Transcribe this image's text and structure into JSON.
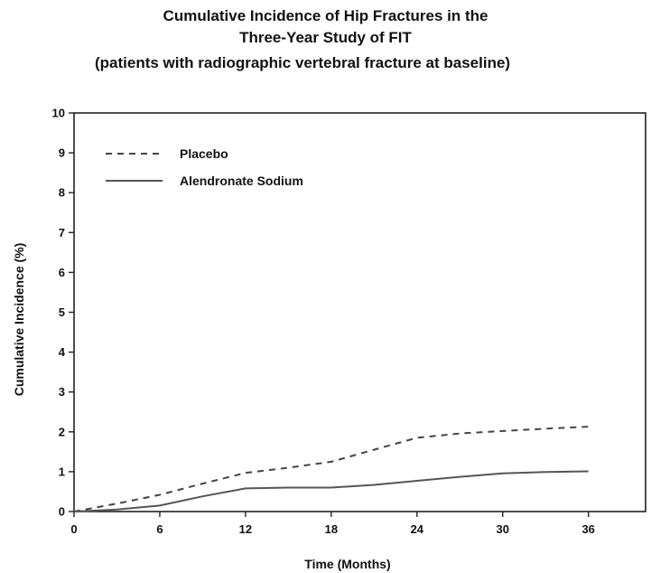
{
  "chart_data": {
    "type": "line",
    "title_lines": [
      "Cumulative Incidence of Hip Fractures in the",
      "Three-Year Study of FIT",
      "(patients with radiographic vertebral fracture at baseline)"
    ],
    "xlabel": "Time (Months)",
    "ylabel": "Cumulative Incidence (%)",
    "xlim": [
      0,
      40
    ],
    "ylim": [
      0,
      10
    ],
    "xticks": [
      0,
      6,
      12,
      18,
      24,
      30,
      36
    ],
    "yticks": [
      0,
      1,
      2,
      3,
      4,
      5,
      6,
      7,
      8,
      9,
      10
    ],
    "legend_position": "top-left",
    "grid": false,
    "series": [
      {
        "name": "Placebo",
        "style": "dashed",
        "color": "#444444",
        "points": [
          [
            0,
            0.0
          ],
          [
            3,
            0.2
          ],
          [
            6,
            0.42
          ],
          [
            9,
            0.7
          ],
          [
            12,
            0.97
          ],
          [
            15,
            1.1
          ],
          [
            18,
            1.25
          ],
          [
            21,
            1.55
          ],
          [
            24,
            1.85
          ],
          [
            27,
            1.96
          ],
          [
            30,
            2.02
          ],
          [
            33,
            2.08
          ],
          [
            36,
            2.13
          ]
        ]
      },
      {
        "name": "Alendronate Sodium",
        "style": "solid",
        "color": "#555555",
        "points": [
          [
            0,
            0.0
          ],
          [
            3,
            0.05
          ],
          [
            6,
            0.15
          ],
          [
            9,
            0.38
          ],
          [
            12,
            0.58
          ],
          [
            15,
            0.6
          ],
          [
            18,
            0.6
          ],
          [
            21,
            0.67
          ],
          [
            24,
            0.77
          ],
          [
            27,
            0.87
          ],
          [
            30,
            0.96
          ],
          [
            33,
            0.99
          ],
          [
            36,
            1.01
          ]
        ]
      }
    ]
  }
}
